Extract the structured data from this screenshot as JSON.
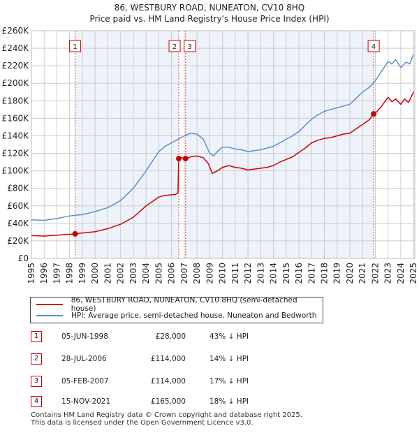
{
  "title_line1": "86, WESTBURY ROAD, NUNEATON, CV10 8HQ",
  "title_line2": "Price paid vs. HM Land Registry's House Price Index (HPI)",
  "colors": {
    "property": "#cc0000",
    "hpi": "#5b8fcc",
    "grid": "#cccccc",
    "shade": "#eef2fa",
    "marker_line": "#dd4444"
  },
  "chart_data": {
    "type": "line",
    "ylim": [
      0,
      260000
    ],
    "xlim": [
      1995,
      2025.1
    ],
    "y_ticks": [
      0,
      20000,
      40000,
      60000,
      80000,
      100000,
      120000,
      140000,
      160000,
      180000,
      200000,
      220000,
      240000,
      260000
    ],
    "y_tick_labels": [
      "£0",
      "£20K",
      "£40K",
      "£60K",
      "£80K",
      "£100K",
      "£120K",
      "£140K",
      "£160K",
      "£180K",
      "£200K",
      "£220K",
      "£240K",
      "£260K"
    ],
    "x_ticks": [
      1995,
      1996,
      1997,
      1998,
      1999,
      2000,
      2001,
      2002,
      2003,
      2004,
      2005,
      2006,
      2007,
      2008,
      2009,
      2010,
      2011,
      2012,
      2013,
      2014,
      2015,
      2016,
      2017,
      2018,
      2019,
      2020,
      2021,
      2022,
      2023,
      2024,
      2025
    ],
    "x_tick_labels": [
      "1995",
      "1996",
      "1997",
      "1998",
      "1999",
      "2000",
      "2001",
      "2002",
      "2003",
      "2004",
      "2005",
      "2006",
      "2007",
      "2008",
      "2009",
      "2010",
      "2011",
      "2012",
      "2013",
      "2014",
      "2015",
      "2016",
      "2017",
      "2018",
      "2019",
      "2020",
      "2021",
      "2022",
      "2023",
      "2024",
      "2025"
    ],
    "shaded_ranges": [
      [
        1998.43,
        2006.57
      ],
      [
        2007.1,
        2021.87
      ]
    ],
    "series": [
      {
        "name": "86, WESTBURY ROAD, NUNEATON, CV10 8HQ (semi-detached house)",
        "points": [
          [
            1995,
            26000
          ],
          [
            1996,
            25500
          ],
          [
            1997,
            26500
          ],
          [
            1998,
            27500
          ],
          [
            1998.43,
            28000
          ],
          [
            1999,
            29000
          ],
          [
            2000,
            30500
          ],
          [
            2001,
            34000
          ],
          [
            2002,
            39000
          ],
          [
            2003,
            47000
          ],
          [
            2004,
            60000
          ],
          [
            2005,
            70000
          ],
          [
            2005.5,
            72000
          ],
          [
            2006.3,
            73000
          ],
          [
            2006.5,
            75000
          ],
          [
            2006.57,
            114000
          ],
          [
            2006.8,
            115000
          ],
          [
            2007.1,
            114000
          ],
          [
            2007.5,
            116000
          ],
          [
            2008,
            117000
          ],
          [
            2008.5,
            115000
          ],
          [
            2008.9,
            108000
          ],
          [
            2009.2,
            97000
          ],
          [
            2009.6,
            100000
          ],
          [
            2010,
            104000
          ],
          [
            2010.5,
            106000
          ],
          [
            2011,
            104000
          ],
          [
            2011.5,
            103000
          ],
          [
            2012,
            101000
          ],
          [
            2012.5,
            102000
          ],
          [
            2013,
            103000
          ],
          [
            2013.5,
            104000
          ],
          [
            2014,
            106000
          ],
          [
            2014.5,
            110000
          ],
          [
            2015,
            113000
          ],
          [
            2015.5,
            116000
          ],
          [
            2016,
            121000
          ],
          [
            2016.5,
            126000
          ],
          [
            2017,
            132000
          ],
          [
            2017.5,
            135000
          ],
          [
            2018,
            137000
          ],
          [
            2018.5,
            138000
          ],
          [
            2019,
            140000
          ],
          [
            2019.5,
            142000
          ],
          [
            2020,
            143000
          ],
          [
            2020.5,
            148000
          ],
          [
            2021,
            153000
          ],
          [
            2021.5,
            158000
          ],
          [
            2021.87,
            165000
          ],
          [
            2022,
            166000
          ],
          [
            2022.4,
            172000
          ],
          [
            2022.8,
            180000
          ],
          [
            2023,
            184000
          ],
          [
            2023.3,
            179000
          ],
          [
            2023.6,
            182000
          ],
          [
            2024,
            176000
          ],
          [
            2024.3,
            182000
          ],
          [
            2024.6,
            178000
          ],
          [
            2025,
            190000
          ]
        ]
      },
      {
        "name": "HPI: Average price, semi-detached house, Nuneaton and Bedworth",
        "points": [
          [
            1995,
            44000
          ],
          [
            1996,
            43500
          ],
          [
            1997,
            45500
          ],
          [
            1998,
            48500
          ],
          [
            1999,
            50000
          ],
          [
            2000,
            53500
          ],
          [
            2001,
            58000
          ],
          [
            2002,
            66000
          ],
          [
            2003,
            80000
          ],
          [
            2004,
            100000
          ],
          [
            2005,
            122000
          ],
          [
            2005.5,
            128000
          ],
          [
            2006,
            132000
          ],
          [
            2006.5,
            136000
          ],
          [
            2007,
            140000
          ],
          [
            2007.5,
            143000
          ],
          [
            2008,
            142000
          ],
          [
            2008.5,
            136000
          ],
          [
            2009,
            120000
          ],
          [
            2009.3,
            117000
          ],
          [
            2009.6,
            122000
          ],
          [
            2010,
            127000
          ],
          [
            2010.5,
            127000
          ],
          [
            2011,
            125000
          ],
          [
            2011.5,
            124000
          ],
          [
            2012,
            122000
          ],
          [
            2012.5,
            123000
          ],
          [
            2013,
            124000
          ],
          [
            2013.5,
            126000
          ],
          [
            2014,
            128000
          ],
          [
            2014.5,
            132000
          ],
          [
            2015,
            136000
          ],
          [
            2015.5,
            140000
          ],
          [
            2016,
            145000
          ],
          [
            2016.5,
            152000
          ],
          [
            2017,
            159000
          ],
          [
            2017.5,
            164000
          ],
          [
            2018,
            168000
          ],
          [
            2018.5,
            170000
          ],
          [
            2019,
            172000
          ],
          [
            2019.5,
            174000
          ],
          [
            2020,
            176000
          ],
          [
            2020.5,
            183000
          ],
          [
            2021,
            190000
          ],
          [
            2021.5,
            195000
          ],
          [
            2022,
            203000
          ],
          [
            2022.5,
            214000
          ],
          [
            2023,
            225000
          ],
          [
            2023.3,
            222000
          ],
          [
            2023.6,
            227000
          ],
          [
            2024,
            218000
          ],
          [
            2024.4,
            224000
          ],
          [
            2024.7,
            222000
          ],
          [
            2025,
            233000
          ]
        ]
      }
    ],
    "sales": [
      {
        "id": "1",
        "x": 1998.43,
        "y": 28000
      },
      {
        "id": "2",
        "x": 2006.57,
        "y": 114000
      },
      {
        "id": "3",
        "x": 2007.1,
        "y": 114000
      },
      {
        "id": "4",
        "x": 2021.87,
        "y": 165000
      }
    ]
  },
  "legend": {
    "property_label": "86, WESTBURY ROAD, NUNEATON, CV10 8HQ (semi-detached house)",
    "hpi_label": "HPI: Average price, semi-detached house, Nuneaton and Bedworth"
  },
  "sales_table": [
    {
      "id": "1",
      "date": "05-JUN-1998",
      "price": "£28,000",
      "hpi": "43% ↓ HPI"
    },
    {
      "id": "2",
      "date": "28-JUL-2006",
      "price": "£114,000",
      "hpi": "14% ↓ HPI"
    },
    {
      "id": "3",
      "date": "05-FEB-2007",
      "price": "£114,000",
      "hpi": "17% ↓ HPI"
    },
    {
      "id": "4",
      "date": "15-NOV-2021",
      "price": "£165,000",
      "hpi": "18% ↓ HPI"
    }
  ],
  "footer": {
    "line1": "Contains HM Land Registry data © Crown copyright and database right 2025.",
    "line2": "This data is licensed under the Open Government Licence v3.0."
  }
}
